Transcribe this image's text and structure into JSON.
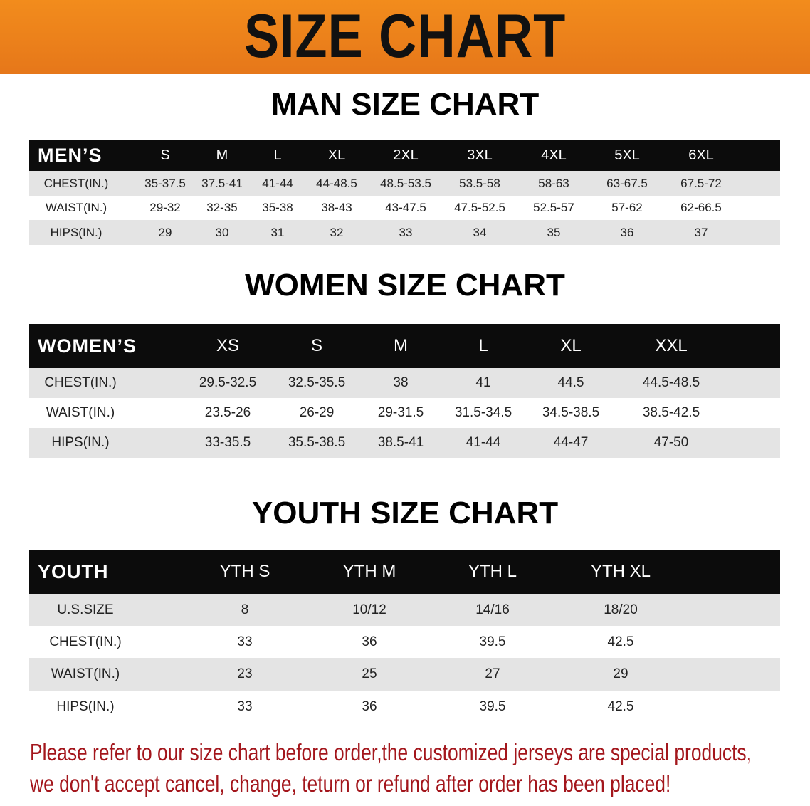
{
  "banner_title": "SIZE CHART",
  "men": {
    "title": "MAN SIZE CHART",
    "header_label": "MEN’S",
    "sizes": [
      "S",
      "M",
      "L",
      "XL",
      "2XL",
      "3XL",
      "4XL",
      "5XL",
      "6XL"
    ],
    "rows": [
      {
        "label": "CHEST(IN.)",
        "values": [
          "35-37.5",
          "37.5-41",
          "41-44",
          "44-48.5",
          "48.5-53.5",
          "53.5-58",
          "58-63",
          "63-67.5",
          "67.5-72"
        ]
      },
      {
        "label": "WAIST(IN.)",
        "values": [
          "29-32",
          "32-35",
          "35-38",
          "38-43",
          "43-47.5",
          "47.5-52.5",
          "52.5-57",
          "57-62",
          "62-66.5"
        ]
      },
      {
        "label": "HIPS(IN.)",
        "values": [
          "29",
          "30",
          "31",
          "32",
          "33",
          "34",
          "35",
          "36",
          "37"
        ]
      }
    ]
  },
  "women": {
    "title": "WOMEN SIZE CHART",
    "header_label": "WOMEN’S",
    "sizes": [
      "XS",
      "S",
      "M",
      "L",
      "XL",
      "XXL"
    ],
    "rows": [
      {
        "label": "CHEST(IN.)",
        "values": [
          "29.5-32.5",
          "32.5-35.5",
          "38",
          "41",
          "44.5",
          "44.5-48.5"
        ]
      },
      {
        "label": "WAIST(IN.)",
        "values": [
          "23.5-26",
          "26-29",
          "29-31.5",
          "31.5-34.5",
          "34.5-38.5",
          "38.5-42.5"
        ]
      },
      {
        "label": "HIPS(IN.)",
        "values": [
          "33-35.5",
          "35.5-38.5",
          "38.5-41",
          "41-44",
          "44-47",
          "47-50"
        ]
      }
    ]
  },
  "youth": {
    "title": "YOUTH SIZE CHART",
    "header_label": "YOUTH",
    "sizes": [
      "YTH S",
      "YTH M",
      "YTH L",
      "YTH XL"
    ],
    "rows": [
      {
        "label": "U.S.SIZE",
        "values": [
          "8",
          "10/12",
          "14/16",
          "18/20"
        ]
      },
      {
        "label": "CHEST(IN.)",
        "values": [
          "33",
          "36",
          "39.5",
          "42.5"
        ]
      },
      {
        "label": "WAIST(IN.)",
        "values": [
          "23",
          "25",
          "27",
          "29"
        ]
      },
      {
        "label": "HIPS(IN.)",
        "values": [
          "33",
          "36",
          "39.5",
          "42.5"
        ]
      }
    ]
  },
  "notice": {
    "line1": "Please refer to our size chart before order,the customized jerseys are special products,",
    "line2": "we don't accept cancel, change, teturn or refund after order has been placed!",
    "color": "#a3161c"
  },
  "colors": {
    "banner": "#f08a1a",
    "header_row": "#0c0c0c",
    "stripe": "#e4e4e4"
  }
}
